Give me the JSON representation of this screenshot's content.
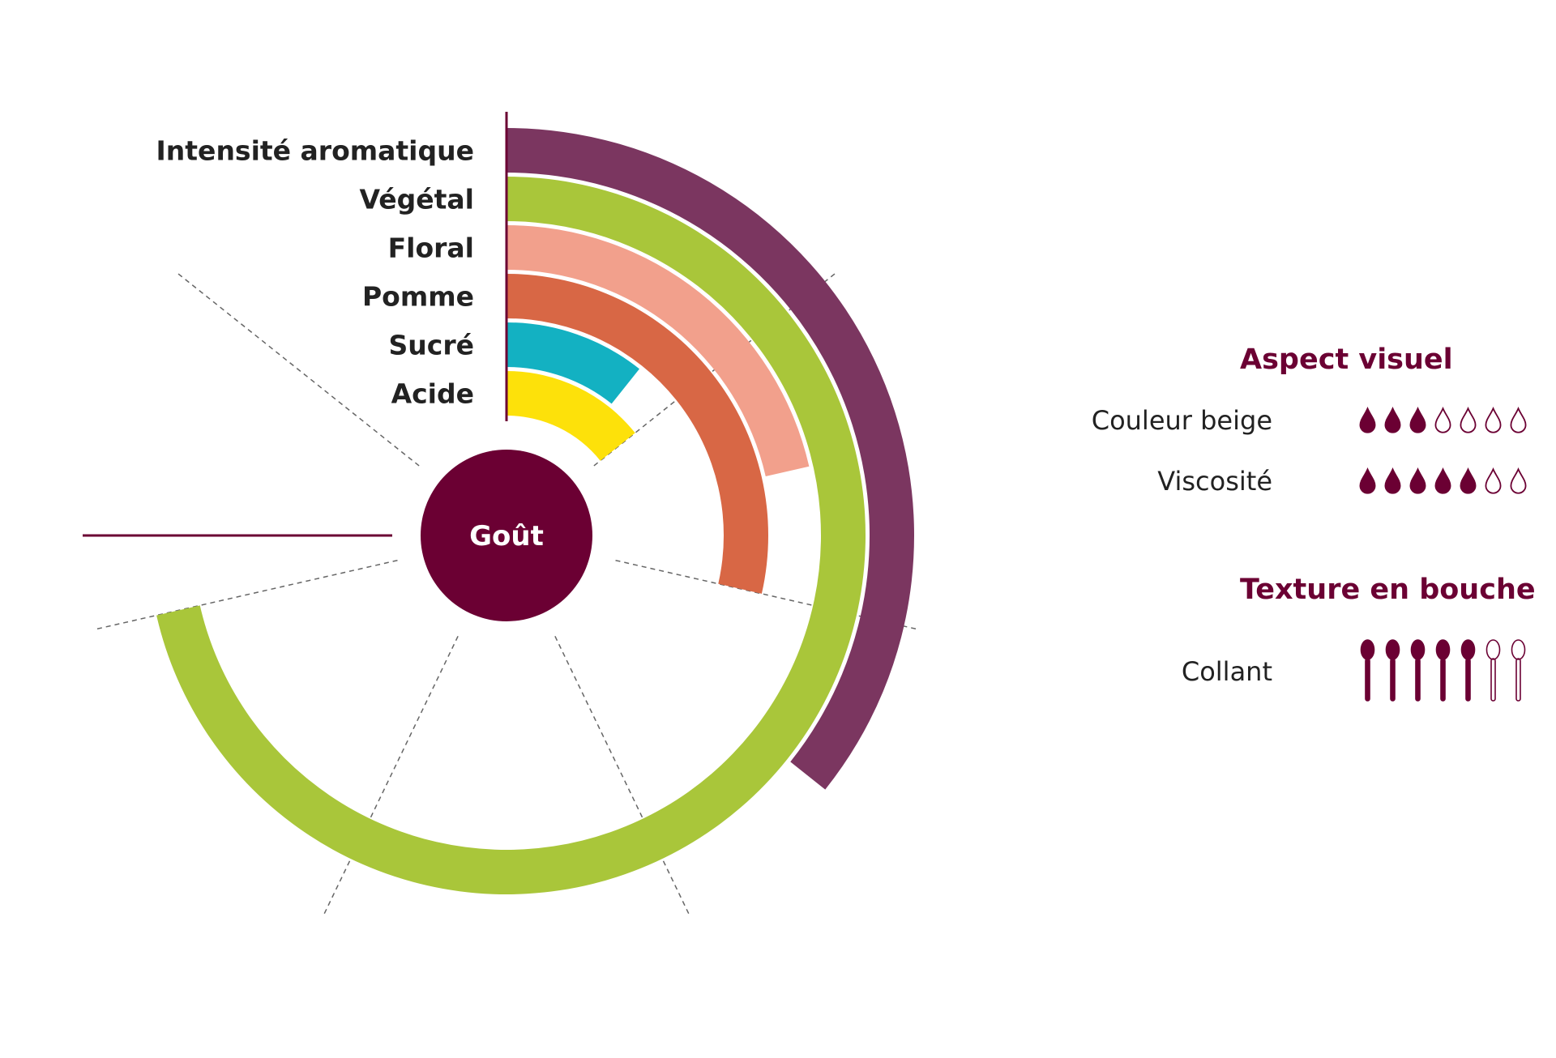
{
  "chart_data": {
    "type": "radial-bar",
    "center_label": "Goût",
    "max": 7,
    "categories": [
      "Intensité aromatique",
      "Végétal",
      "Floral",
      "Pomme",
      "Sucré",
      "Acide"
    ],
    "values": [
      2.5,
      5,
      1.5,
      2,
      0.75,
      1
    ],
    "colors": [
      "#7b3660",
      "#a9c63a",
      "#f2a08c",
      "#d86745",
      "#13b1c2",
      "#fde10a"
    ]
  },
  "legend": {
    "visual_title": "Aspect visuel",
    "visual_rows": [
      {
        "label": "Couleur beige",
        "value": 3,
        "max": 7,
        "icon": "drop-icon"
      },
      {
        "label": "Viscosité",
        "value": 5,
        "max": 7,
        "icon": "drop-icon"
      }
    ],
    "texture_title": "Texture en bouche",
    "texture_rows": [
      {
        "label": "Collant",
        "value": 5,
        "max": 7,
        "icon": "spoon-icon"
      }
    ],
    "icon_color": "#6b0033"
  }
}
